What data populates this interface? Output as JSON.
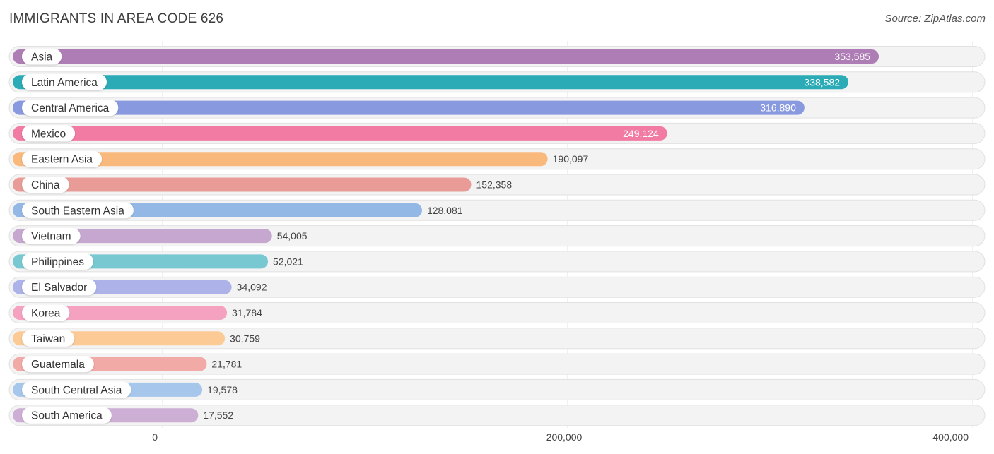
{
  "header": {
    "title": "IMMIGRANTS IN AREA CODE 626",
    "source": "Source: ZipAtlas.com"
  },
  "chart_data": {
    "type": "bar",
    "orientation": "horizontal",
    "title": "IMMIGRANTS IN AREA CODE 626",
    "xlabel": "",
    "ylabel": "",
    "xlim": [
      0,
      400000
    ],
    "ticks": [
      0,
      200000,
      400000
    ],
    "tick_labels": [
      "0",
      "200,000",
      "400,000"
    ],
    "grid": true,
    "categories": [
      "Asia",
      "Latin America",
      "Central America",
      "Mexico",
      "Eastern Asia",
      "China",
      "South Eastern Asia",
      "Vietnam",
      "Philippines",
      "El Salvador",
      "Korea",
      "Taiwan",
      "Guatemala",
      "South Central Asia",
      "South America"
    ],
    "values": [
      353585,
      338582,
      316890,
      249124,
      190097,
      152358,
      128081,
      54005,
      52021,
      34092,
      31784,
      30759,
      21781,
      19578,
      17552
    ],
    "value_labels": [
      "353,585",
      "338,582",
      "316,890",
      "249,124",
      "190,097",
      "152,358",
      "128,081",
      "54,005",
      "52,021",
      "34,092",
      "31,784",
      "30,759",
      "21,781",
      "19,578",
      "17,552"
    ],
    "colors": [
      "#ae7db5",
      "#2aabb5",
      "#8899e0",
      "#f27ba4",
      "#f9b97c",
      "#e99c97",
      "#93b8e6",
      "#c5a7cf",
      "#78c8d1",
      "#adb3e8",
      "#f5a2c1",
      "#fbca95",
      "#f2aaa7",
      "#a6c6ec",
      "#cdaed4"
    ]
  }
}
